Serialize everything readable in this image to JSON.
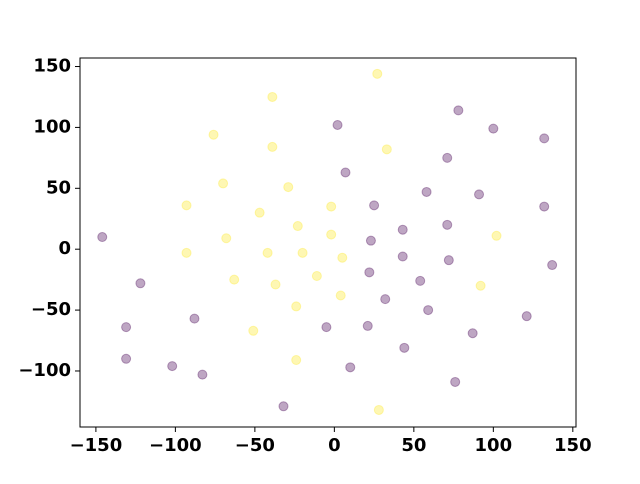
{
  "chart_data": {
    "type": "scatter",
    "xlim": [
      -160,
      152
    ],
    "ylim": [
      -146,
      157
    ],
    "xticks": [
      {
        "value": -150,
        "label": "−150"
      },
      {
        "value": -100,
        "label": "−100"
      },
      {
        "value": -50,
        "label": "−50"
      },
      0,
      50,
      100,
      150
    ],
    "yticks": [
      {
        "value": -100,
        "label": "−100"
      },
      {
        "value": -50,
        "label": "−50"
      },
      0,
      50,
      100,
      150
    ],
    "series": [
      {
        "color": "#440154",
        "x": [
          -146,
          -122,
          -131,
          -131,
          -102,
          -88,
          -83,
          -32,
          -5,
          10,
          2,
          7,
          25,
          23,
          22,
          21,
          32,
          43,
          43,
          44,
          58,
          54,
          59,
          71,
          71,
          72,
          78,
          87,
          91,
          100,
          76,
          121,
          132,
          132,
          137
        ],
        "values": [
          10,
          -28,
          -64,
          -90,
          -96,
          -57,
          -103,
          -129,
          -64,
          -97,
          102,
          63,
          36,
          7,
          -19,
          -63,
          -41,
          16,
          -6,
          -81,
          47,
          -26,
          -50,
          75,
          20,
          -9,
          114,
          -69,
          45,
          99,
          -109,
          -55,
          91,
          35,
          -13
        ]
      },
      {
        "color": "#fde725",
        "x": [
          27,
          -39,
          -76,
          -39,
          33,
          -70,
          -29,
          -93,
          -47,
          -2,
          -23,
          -68,
          -2,
          -93,
          -42,
          -20,
          5,
          102,
          -63,
          -37,
          -11,
          4,
          -24,
          -51,
          -24,
          92,
          28
        ],
        "values": [
          144,
          125,
          94,
          84,
          82,
          54,
          51,
          36,
          30,
          35,
          19,
          9,
          12,
          -3,
          -3,
          -3,
          -7,
          11,
          -25,
          -29,
          -22,
          -38,
          -47,
          -67,
          -91,
          -30,
          -132
        ]
      }
    ]
  }
}
